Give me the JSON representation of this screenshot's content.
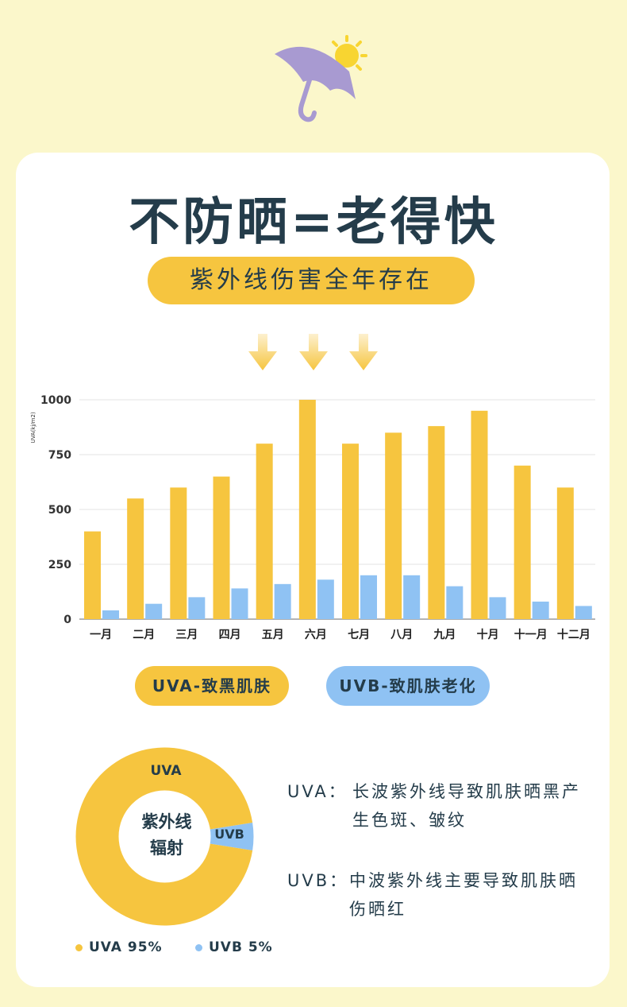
{
  "colors": {
    "background": "#fbf7cb",
    "uva": "#f6c53f",
    "uvb": "#8fc2f3",
    "text": "#243c4a",
    "umbrella": "#a89ad1",
    "sun": "#f8d531"
  },
  "title": "不防晒=老得快",
  "subtitle": "紫外线伤害全年存在",
  "chart_data": [
    {
      "type": "bar",
      "ylabel": "UVA(kj/m2)",
      "ylim": [
        0,
        1000
      ],
      "yticks": [
        0,
        250,
        500,
        750,
        1000
      ],
      "categories": [
        "一月",
        "二月",
        "三月",
        "四月",
        "五月",
        "六月",
        "七月",
        "八月",
        "九月",
        "十月",
        "十一月",
        "十二月"
      ],
      "series": [
        {
          "name": "UVA-致黑肌肤",
          "color": "#f6c53f",
          "values": [
            400,
            550,
            600,
            650,
            800,
            1000,
            800,
            850,
            880,
            950,
            700,
            600
          ]
        },
        {
          "name": "UVB-致肌肤老化",
          "color": "#8fc2f3",
          "values": [
            40,
            70,
            100,
            140,
            160,
            180,
            200,
            200,
            150,
            100,
            80,
            60
          ]
        }
      ],
      "grid": true,
      "legend_position": "bottom"
    },
    {
      "type": "pie",
      "center_label": [
        "紫外线",
        "辐射"
      ],
      "slices": [
        {
          "label": "UVA",
          "value": 95,
          "color": "#f6c53f"
        },
        {
          "label": "UVB",
          "value": 5,
          "color": "#8fc2f3"
        }
      ]
    }
  ],
  "legend": {
    "uva": "UVA-致黑肌肤",
    "uvb": "UVB-致肌肤老化"
  },
  "descriptions": {
    "uva_label": "UVA：",
    "uva_text": "长波紫外线导致肌肤晒黑产生色斑、皱纹",
    "uvb_label": "UVB：",
    "uvb_text": "中波紫外线主要导致肌肤晒伤晒红"
  },
  "percentages": {
    "uva": "UVA 95%",
    "uvb": "UVB 5%"
  }
}
